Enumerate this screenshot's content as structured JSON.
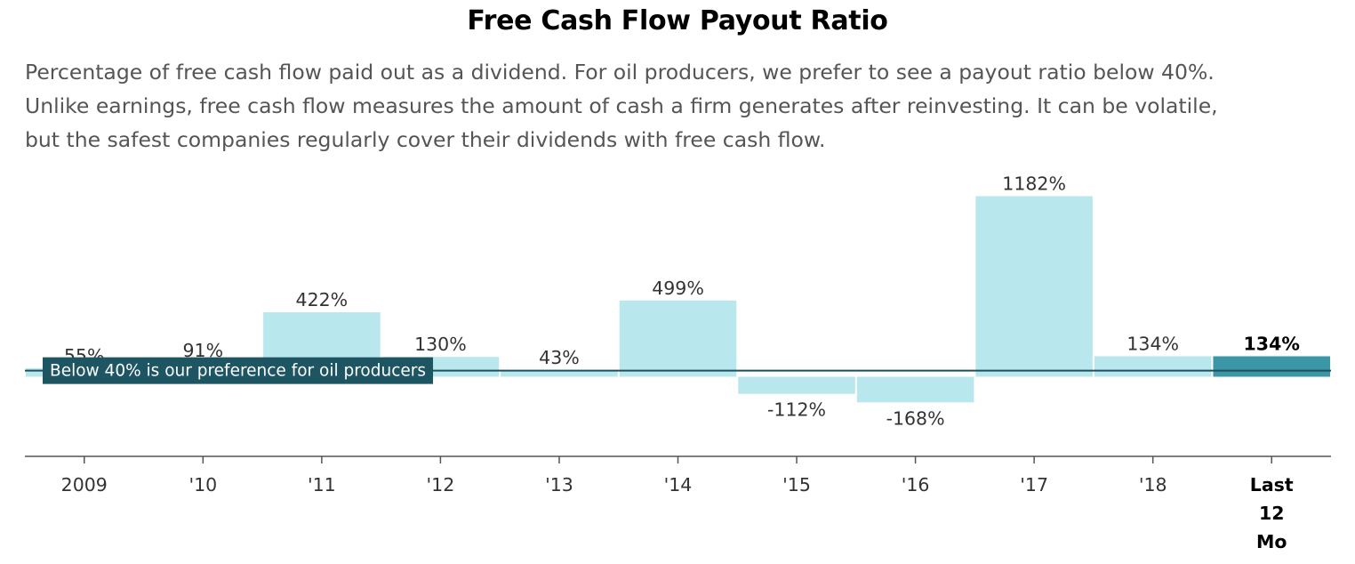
{
  "header": {
    "title": "Free Cash Flow Payout Ratio",
    "subtitle_lines": [
      "Percentage of free cash flow paid out as a dividend. For oil producers, we prefer to see a payout ratio below 40%.",
      "Unlike earnings, free cash flow measures the amount of cash a firm generates after reinvesting. It can be volatile,",
      "but the safest companies regularly cover their dividends with free cash flow."
    ]
  },
  "chart_data": {
    "type": "bar",
    "categories": [
      "2009",
      "'10",
      "'11",
      "'12",
      "'13",
      "'14",
      "'15",
      "'16",
      "'17",
      "'18",
      "Last 12 Mo"
    ],
    "category_label_lines": [
      [
        "2009"
      ],
      [
        "'10"
      ],
      [
        "'11"
      ],
      [
        "'12"
      ],
      [
        "'13"
      ],
      [
        "'14"
      ],
      [
        "'15"
      ],
      [
        "'16"
      ],
      [
        "'17"
      ],
      [
        "'18"
      ],
      [
        "Last",
        "12",
        "Mo"
      ]
    ],
    "values": [
      55,
      91,
      422,
      130,
      43,
      499,
      -112,
      -168,
      1182,
      134,
      134
    ],
    "value_labels": [
      "55%",
      "91%",
      "422%",
      "130%",
      "43%",
      "499%",
      "-112%",
      "-168%",
      "1182%",
      "134%",
      "134%"
    ],
    "highlight_index": 10,
    "ylim": [
      -500,
      1300
    ],
    "reference_line": {
      "value": 40,
      "label": "Below 40% is our preference for oil producers"
    },
    "grid": false,
    "colors": {
      "bar": "#b8e8ee",
      "highlight_bar": "#3b97a6",
      "reference_line": "#1e4f5c",
      "reference_label_bg": "#1e5563",
      "reference_label_text": "#ffffff",
      "axis": "#555555",
      "label_text": "#333333",
      "highlight_text": "#000000"
    }
  }
}
